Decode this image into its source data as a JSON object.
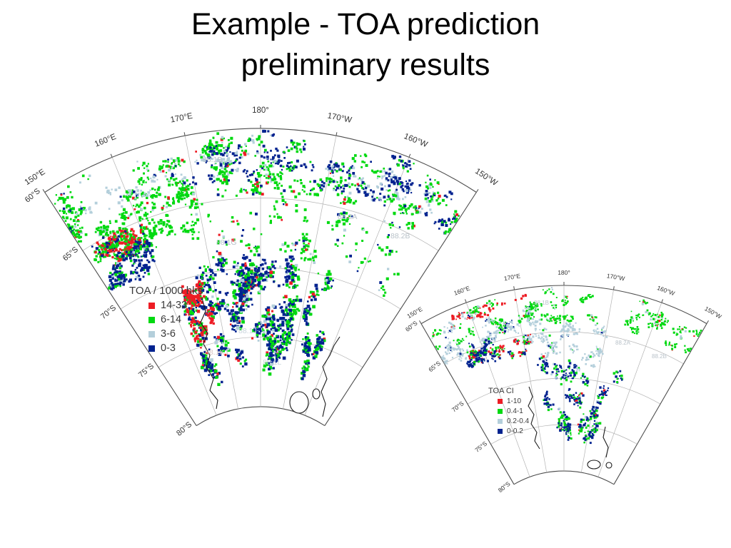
{
  "slide": {
    "title_line1": "Example - TOA prediction",
    "title_line2": "preliminary results"
  },
  "colors": {
    "red": "#ed1c24",
    "green": "#00d911",
    "lightblue": "#b4cfdb",
    "darkblue": "#00228f",
    "graticule": "#b3b3b3",
    "outline": "#4d4d4d",
    "coast": "#1a1a1a",
    "region_label": "#b9c2c9",
    "graticule_label": "#333333"
  },
  "maps": [
    {
      "id": "left-map",
      "legend": {
        "title": "TOA / 1000 hks",
        "items": [
          {
            "label": "14-33",
            "color": "#ed1c24"
          },
          {
            "label": "6-14",
            "color": "#00d911"
          },
          {
            "label": "3-6",
            "color": "#b4cfdb"
          },
          {
            "label": "0-3",
            "color": "#00228f"
          }
        ]
      },
      "meridians": [
        "150°E",
        "160°E",
        "170°E",
        "180°",
        "170°W",
        "160°W",
        "150°W"
      ],
      "parallels": [
        "60°S",
        "65°S",
        "70°S",
        "75°S",
        "80°S"
      ],
      "regions": [
        "88.1B",
        "88.1G",
        "88.2A",
        "88.2B",
        "88.1J",
        "88.1K",
        "88.1L"
      ]
    },
    {
      "id": "right-map",
      "legend": {
        "title": "TOA CI",
        "items": [
          {
            "label": "1-10",
            "color": "#ed1c24"
          },
          {
            "label": "0.4-1",
            "color": "#00d911"
          },
          {
            "label": "0.2-0.4",
            "color": "#b4cfdb"
          },
          {
            "label": "0-0.2",
            "color": "#00228f"
          }
        ]
      },
      "meridians": [
        "150°E",
        "160°E",
        "170°E",
        "180°",
        "170°W",
        "160°W",
        "150°W"
      ],
      "parallels": [
        "60°S",
        "65°S",
        "70°S",
        "75°S",
        "80°S"
      ],
      "regions": [
        "88.1B",
        "88.2A",
        "88.2B"
      ]
    }
  ]
}
